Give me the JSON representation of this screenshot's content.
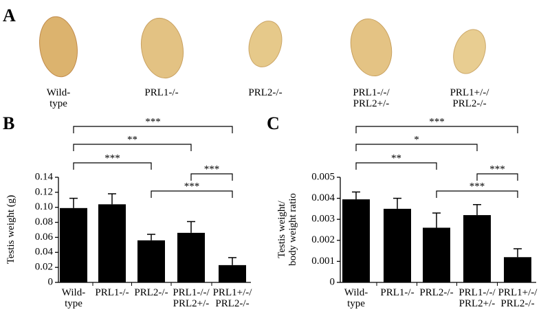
{
  "panel_a": {
    "label": "A",
    "samples": [
      "Wild-\ntype",
      "PRL1-/-",
      "PRL2-/-",
      "PRL1-/-/\nPRL2+/-",
      "PRL1+/-/\nPRL2-/-"
    ]
  },
  "chart_data": [
    {
      "type": "bar",
      "panel_label": "B",
      "y_label": "Testis weight (g)",
      "categories": [
        "Wild-\ntype",
        "PRL1-/-",
        "PRL2-/-",
        "PRL1-/-/\nPRL2+/-",
        "PRL1+/-/\nPRL2-/-"
      ],
      "values": [
        0.099,
        0.104,
        0.056,
        0.066,
        0.023
      ],
      "errors": [
        0.013,
        0.014,
        0.008,
        0.015,
        0.01
      ],
      "color": "#000000",
      "ylim": [
        0,
        0.14
      ],
      "yticks": [
        0,
        0.02,
        0.04,
        0.06,
        0.08,
        {
          "value": 0.1,
          "label": "0.10"
        },
        0.12,
        0.14
      ],
      "annotations": [
        {
          "from": 0,
          "to": 4,
          "label": "***"
        },
        {
          "from": 0,
          "to": 3,
          "label": "**"
        },
        {
          "from": 0,
          "to": 2,
          "label": "***"
        },
        {
          "from": 3,
          "to": 4,
          "label": "***"
        },
        {
          "from": 2,
          "to": 4,
          "label": "***"
        }
      ]
    },
    {
      "type": "bar",
      "panel_label": "C",
      "y_label": "Testis weight/\nbody weight ratio",
      "categories": [
        "Wild-\ntype",
        "PRL1-/-",
        "PRL2-/-",
        "PRL1-/-/\nPRL2+/-",
        "PRL1+/-/\nPRL2-/-"
      ],
      "values": [
        0.00395,
        0.0035,
        0.0026,
        0.0032,
        0.0012
      ],
      "errors": [
        0.00035,
        0.0005,
        0.0007,
        0.0005,
        0.0004
      ],
      "color": "#000000",
      "ylim": [
        0,
        0.005
      ],
      "yticks": [
        0,
        0.001,
        0.002,
        0.003,
        0.004,
        0.005
      ],
      "annotations": [
        {
          "from": 0,
          "to": 4,
          "label": "***"
        },
        {
          "from": 0,
          "to": 3,
          "label": "*"
        },
        {
          "from": 0,
          "to": 2,
          "label": "**"
        },
        {
          "from": 3,
          "to": 4,
          "label": "***"
        },
        {
          "from": 2,
          "to": 4,
          "label": "***"
        }
      ]
    }
  ]
}
